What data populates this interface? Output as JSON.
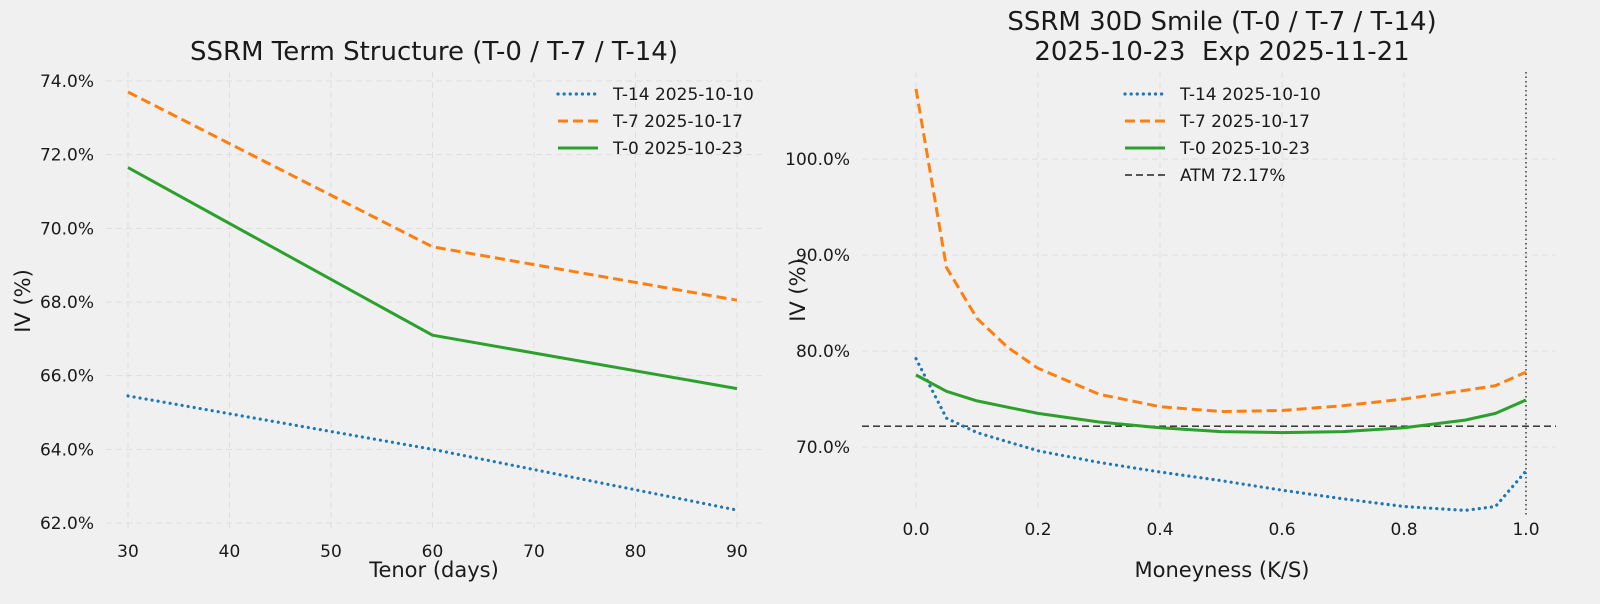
{
  "chart_data": [
    {
      "type": "line",
      "title": "SSRM Term Structure (T-0 / T-7 / T-14)",
      "xlabel": "Tenor (days)",
      "ylabel": "IV (%)",
      "xlim": [
        27,
        93
      ],
      "ylim": [
        61.9,
        74.3
      ],
      "xticks": [
        30,
        40,
        50,
        60,
        70,
        80,
        90
      ],
      "yticks": [
        62,
        64,
        66,
        68,
        70,
        72,
        74
      ],
      "grid": true,
      "legend_position": "top-right",
      "series": [
        {
          "name": "T-14 2025-10-10",
          "color": "#1f77b4",
          "style": "dotted",
          "x": [
            30,
            60,
            90
          ],
          "y": [
            65.45,
            64.0,
            62.35
          ]
        },
        {
          "name": "T-7 2025-10-17",
          "color": "#ff7f0e",
          "style": "dashed",
          "x": [
            30,
            60,
            90
          ],
          "y": [
            73.7,
            69.5,
            68.05
          ]
        },
        {
          "name": "T-0 2025-10-23",
          "color": "#2ca02c",
          "style": "solid",
          "x": [
            30,
            60,
            90
          ],
          "y": [
            71.65,
            67.1,
            65.65
          ]
        }
      ]
    },
    {
      "type": "line",
      "title": "SSRM 30D Smile (T-0 / T-7 / T-14)",
      "subtitle": "2025-10-23  Exp 2025-11-21",
      "xlabel": "Moneyness (K/S)",
      "ylabel": "IV (%)",
      "xlim": [
        -0.05,
        1.05
      ],
      "ylim": [
        61.5,
        110.5
      ],
      "xticks": [
        0.0,
        0.2,
        0.4,
        0.6,
        0.8,
        1.0
      ],
      "yticks": [
        70,
        80,
        90,
        100
      ],
      "grid": true,
      "legend_position": "top-center",
      "atm_line": {
        "label": "ATM 72.17%",
        "value": 72.17
      },
      "vline_x": 1.0,
      "series": [
        {
          "name": "T-14 2025-10-10",
          "color": "#1f77b4",
          "style": "dotted",
          "x": [
            0.0,
            0.05,
            0.1,
            0.2,
            0.3,
            0.4,
            0.5,
            0.6,
            0.7,
            0.8,
            0.9,
            0.95,
            1.0
          ],
          "y": [
            79.2,
            73.0,
            71.5,
            69.6,
            68.4,
            67.4,
            66.5,
            65.5,
            64.6,
            63.8,
            63.4,
            63.8,
            67.5
          ]
        },
        {
          "name": "T-7 2025-10-17",
          "color": "#ff7f0e",
          "style": "dashed",
          "x": [
            0.0,
            0.05,
            0.1,
            0.15,
            0.2,
            0.3,
            0.4,
            0.5,
            0.6,
            0.7,
            0.8,
            0.9,
            0.95,
            1.0
          ],
          "y": [
            107.3,
            88.7,
            83.4,
            80.4,
            78.2,
            75.5,
            74.2,
            73.7,
            73.8,
            74.3,
            75.0,
            75.9,
            76.4,
            77.8
          ]
        },
        {
          "name": "T-0 2025-10-23",
          "color": "#2ca02c",
          "style": "solid",
          "x": [
            0.0,
            0.05,
            0.1,
            0.2,
            0.3,
            0.4,
            0.5,
            0.6,
            0.7,
            0.8,
            0.9,
            0.95,
            1.0
          ],
          "y": [
            77.5,
            75.8,
            74.8,
            73.5,
            72.6,
            72.0,
            71.6,
            71.5,
            71.6,
            72.0,
            72.8,
            73.5,
            74.9
          ]
        }
      ]
    }
  ]
}
